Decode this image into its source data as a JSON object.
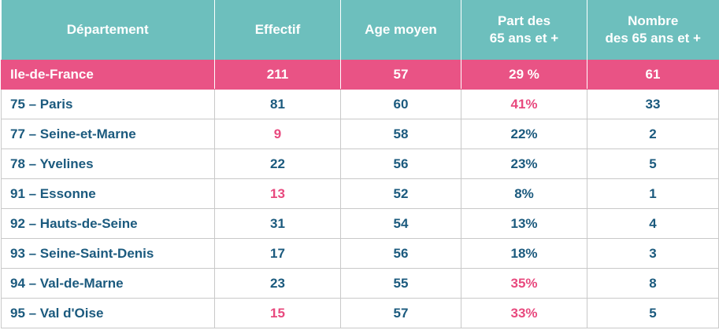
{
  "headers": [
    "Département",
    "Effectif",
    "Age moyen",
    "Part des\n65 ans et +",
    "Nombre\ndes 65 ans et +"
  ],
  "region": {
    "name": "Ile-de-France",
    "effectif": "211",
    "age": "57",
    "part": "29 %",
    "nombre": "61"
  },
  "rows": [
    {
      "dept": "75 – Paris",
      "effectif": "81",
      "age": "60",
      "part": "41%",
      "nombre": "33"
    },
    {
      "dept": "77 – Seine-et-Marne",
      "effectif": "9",
      "age": "58",
      "part": "22%",
      "nombre": "2"
    },
    {
      "dept": "78 – Yvelines",
      "effectif": "22",
      "age": "56",
      "part": "23%",
      "nombre": "5"
    },
    {
      "dept": "91 – Essonne",
      "effectif": "13",
      "age": "52",
      "part": "8%",
      "nombre": "1"
    },
    {
      "dept": "92 – Hauts-de-Seine",
      "effectif": "31",
      "age": "54",
      "part": "13%",
      "nombre": "4"
    },
    {
      "dept": "93 – Seine-Saint-Denis",
      "effectif": "17",
      "age": "56",
      "part": "18%",
      "nombre": "3"
    },
    {
      "dept": "94 – Val-de-Marne",
      "effectif": "23",
      "age": "55",
      "part": "35%",
      "nombre": "8"
    },
    {
      "dept": "95 – Val d'Oise",
      "effectif": "15",
      "age": "57",
      "part": "33%",
      "nombre": "5"
    }
  ],
  "colors": {
    "header_bg": "#6dbfbd",
    "region_bg": "#e95385",
    "text": "#1b5a7e",
    "highlight": "#e8497e"
  }
}
